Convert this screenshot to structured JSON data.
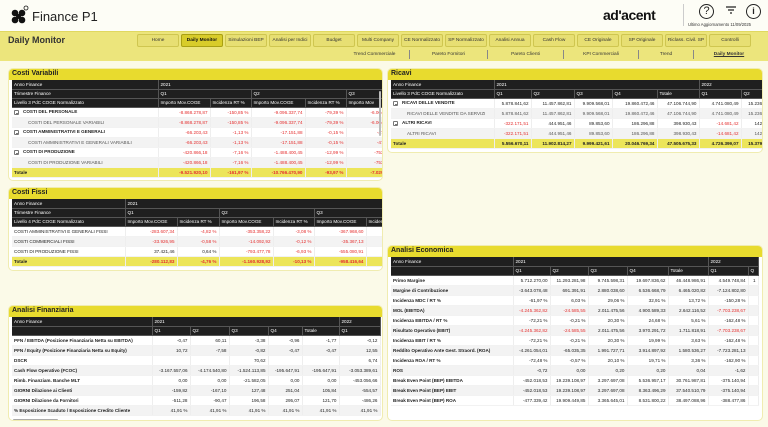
{
  "header": {
    "app_title": "Finance P1",
    "brand": "ad'acent",
    "last_update": "Ultimo Aggiornamento  11/09/2025",
    "icons": [
      "help-icon",
      "filter-icon",
      "info-icon"
    ]
  },
  "toolbar": {
    "page_title": "Daily Monitor",
    "nav": [
      "Home",
      "Daily Monitor",
      "Simulazioni BEP",
      "Analisi per Indici",
      "Budget",
      "Multi Company",
      "CE Normalizzato",
      "SP Normalizzato",
      "Analisi Annua",
      "Cash Flow",
      "CE Originale",
      "SP Originale",
      "Riclass. Civil. SP",
      "Controlli"
    ],
    "nav_active": 1,
    "subnav": [
      "Trend Commerciale",
      "Pareto Fornitori",
      "Pareto Clienti",
      "KPI Commerciali",
      "Trend",
      "Daily Monitor"
    ],
    "subnav_active": 5
  },
  "panels": {
    "costi_variabili": {
      "title": "Costi Variabili",
      "red_negatives": true,
      "head": [
        [
          [
            "Anno Finance",
            1
          ],
          [
            "2021",
            5
          ]
        ],
        [
          [
            "Trimestre Finance",
            1
          ],
          [
            "Q1",
            2
          ],
          [
            "Q2",
            2
          ],
          [
            "Q3",
            1
          ]
        ],
        [
          [
            "Livello 3 PdC COGE Normalizzato",
            1
          ],
          [
            "Importo Mov.COGE",
            1
          ],
          [
            "Incidenza RT %",
            1
          ],
          [
            "Importo Mov.COGE",
            1
          ],
          [
            "Incidenza RT %",
            1
          ],
          [
            "Importo Mov",
            1
          ]
        ]
      ],
      "rows": [
        {
          "type": "bold",
          "exp": true,
          "cells": [
            "COSTI DEL PERSONALE",
            "-8.868.278,87",
            "-150,85 %",
            "-9.096.337,74",
            "-79,39 %",
            "-6.064"
          ]
        },
        {
          "type": "sub",
          "cells": [
            "COSTI DEL PERSONALE VARIABILI",
            "-8.868.278,87",
            "-150,85 %",
            "-9.096.337,74",
            "-79,39 %",
            "-6.064"
          ]
        },
        {
          "type": "bold",
          "exp": true,
          "cells": [
            "COSTI AMMINISTRATIVI E GENERALI",
            "-66.203,43",
            "-1,13 %",
            "-17.151,88",
            "-0,15 %",
            "-47"
          ]
        },
        {
          "type": "sub",
          "cells": [
            "COSTI AMMINISTRATIVI E GENERALI VARIABILI",
            "-66.203,43",
            "-1,13 %",
            "-17.151,88",
            "-0,15 %",
            "-47"
          ]
        },
        {
          "type": "bold",
          "exp": true,
          "cells": [
            "COSTI DI PRODUZIONE",
            "-420.866,18",
            "-7,16 %",
            "-1.488.400,45",
            "-12,99 %",
            "-753"
          ]
        },
        {
          "type": "sub",
          "cells": [
            "COSTI DI PRODUZIONE VARIABILI",
            "-420.866,18",
            "-7,16 %",
            "-1.488.400,45",
            "-12,99 %",
            "-753"
          ]
        },
        {
          "type": "tot",
          "cells": [
            "Totale",
            "-9.521.920,10",
            "-161,97 %",
            "-10.766.470,90",
            "-93,97 %",
            "-7.029"
          ]
        }
      ]
    },
    "ricavi": {
      "title": "Ricavi",
      "red_negatives": true,
      "head": [
        [
          [
            "Anno Finance",
            1
          ],
          [
            "2021",
            5
          ],
          [
            "2022",
            2
          ]
        ],
        [
          [
            "Livello 3 PdC COGE Normalizzato",
            1
          ],
          [
            "Q1",
            1
          ],
          [
            "Q2",
            1
          ],
          [
            "Q3",
            1
          ],
          [
            "Q4",
            1
          ],
          [
            "Totale",
            1
          ],
          [
            "Q1",
            1
          ],
          [
            "Q2",
            1
          ]
        ]
      ],
      "rows": [
        {
          "type": "bold",
          "exp": true,
          "cells": [
            "RICAVI DELLE VENDITE",
            "5.878.841,62",
            "11.457.862,81",
            "9.909.568,01",
            "19.860.472,46",
            "47.106.744,90",
            "4.741.080,49",
            "15.236.44"
          ]
        },
        {
          "type": "sub",
          "cells": [
            "RICAVI DELLE VENDITE DA SERVIZI",
            "5.878.841,62",
            "11.457.862,81",
            "9.909.568,01",
            "19.860.472,46",
            "47.106.744,90",
            "4.741.080,49",
            "15.236.44"
          ]
        },
        {
          "type": "bold",
          "exp": true,
          "cells": [
            "ALTRI RICAVI",
            "-322.171,51",
            "444.951,46",
            "89.853,60",
            "186.296,88",
            "398.930,43",
            "-14.681,42",
            "142.78"
          ]
        },
        {
          "type": "sub",
          "cells": [
            "ALTRI RICAVI",
            "-322.171,51",
            "444.951,46",
            "89.853,60",
            "186.296,88",
            "398.930,43",
            "-14.681,42",
            "142.78"
          ]
        },
        {
          "type": "tot",
          "cells": [
            "Totale",
            "5.556.670,11",
            "11.902.814,27",
            "9.999.421,61",
            "20.046.769,34",
            "47.505.675,33",
            "4.726.399,07",
            "15.379.22"
          ]
        }
      ]
    },
    "costi_fissi": {
      "title": "Costi Fissi",
      "red_negatives": true,
      "head": [
        [
          [
            "Anno Finance",
            1
          ],
          [
            "2021",
            6
          ]
        ],
        [
          [
            "Trimestre Finance",
            1
          ],
          [
            "Q1",
            2
          ],
          [
            "Q2",
            2
          ],
          [
            "Q3",
            2
          ]
        ],
        [
          [
            "Livello 4 PdC COGE Normalizzato",
            1
          ],
          [
            "Importo Mov.COGE",
            1
          ],
          [
            "Incidenza RT %",
            1
          ],
          [
            "Importo Mov.COGE",
            1
          ],
          [
            "Incidenza RT %",
            1
          ],
          [
            "Importo Mov.COGE",
            1
          ],
          [
            "Inciden",
            1
          ]
        ]
      ],
      "rows": [
        {
          "type": "plain",
          "cells": [
            "COSTI AMMINISTRATIVI E GENERALI FISSI",
            "-283.607,34",
            "-4,82 %",
            "-353.358,22",
            "-3,08 %",
            "-367.968,60",
            ""
          ]
        },
        {
          "type": "plain",
          "cells": [
            "COSTI COMMERCIALI FISSI",
            "-33.926,95",
            "-0,58 %",
            "-14.092,92",
            "-0,12 %",
            "-35.367,13",
            ""
          ]
        },
        {
          "type": "plain",
          "cells": [
            "COSTI DI PRODUZIONE FISSI",
            "37.421,46",
            "0,64 %",
            "-793.477,78",
            "-6,93 %",
            "-555.080,91",
            ""
          ]
        },
        {
          "type": "tot",
          "cells": [
            "Totale",
            "-280.112,83",
            "-4,76 %",
            "-1.160.928,92",
            "-10,13 %",
            "-958.416,64",
            ""
          ]
        }
      ]
    },
    "analisi_finanziaria": {
      "title": "Analisi Finanziaria",
      "red_negatives": false,
      "head": [
        [
          [
            "Anno Finance",
            1
          ],
          [
            "2021",
            5
          ],
          [
            "2022",
            1
          ]
        ],
        [
          [
            "",
            1
          ],
          [
            "Q1",
            1
          ],
          [
            "Q2",
            1
          ],
          [
            "Q3",
            1
          ],
          [
            "Q4",
            1
          ],
          [
            "Totale",
            1
          ],
          [
            "Q1",
            1
          ]
        ]
      ],
      "rows": [
        {
          "type": "bold",
          "cells": [
            "PFN / EBITDA (Posizione Finanziaria Netta su EBITDA)",
            "-0,47",
            "60,11",
            "-3,38",
            "-0,96",
            "-1,77",
            "-0,12"
          ]
        },
        {
          "type": "bold",
          "cells": [
            "PFN / Equity (Posizione Finanziaria Netta su Equity)",
            "10,72",
            "-7,58",
            "-0,82",
            "-0,47",
            "-0,47",
            "12,55"
          ]
        },
        {
          "type": "bold",
          "cells": [
            "DSCR",
            "",
            "",
            "70,62",
            "",
            "",
            "6,74"
          ]
        },
        {
          "type": "bold",
          "cells": [
            "Cash Flow Operativo (FCOC)",
            "-3.167.557,06",
            "-4.174.540,80",
            "-1.524.113,85",
            "-195.647,91",
            "-195.647,91",
            "-3.053.389,61"
          ]
        },
        {
          "type": "bold",
          "cells": [
            "Rimb. Finanziam. Banche MLT",
            "0,00",
            "0,00",
            "-21.582,05",
            "0,00",
            "0,00",
            "-453.056,66"
          ]
        },
        {
          "type": "bold",
          "cells": [
            "GIORNI Dilazione ai Clienti",
            "-159,82",
            "-167,10",
            "127,48",
            "251,04",
            "105,84",
            "-554,57"
          ]
        },
        {
          "type": "bold",
          "cells": [
            "GIORNI Dilazione da Fornitori",
            "-511,28",
            "-90,47",
            "196,58",
            "295,07",
            "121,70",
            "-486,26"
          ]
        },
        {
          "type": "bold",
          "cells": [
            "% Esposizione Scaduto / Esposizione Credito Cliente",
            "41,91 %",
            "41,91 %",
            "41,91 %",
            "41,91 %",
            "41,91 %",
            "41,91 %"
          ]
        }
      ]
    },
    "analisi_economica": {
      "title": "Analisi Economica",
      "red_negatives": false,
      "head": [
        [
          [
            "Anno Finance",
            1
          ],
          [
            "2021",
            5
          ],
          [
            "2022",
            2
          ]
        ],
        [
          [
            "",
            1
          ],
          [
            "Q1",
            1
          ],
          [
            "Q2",
            1
          ],
          [
            "Q3",
            1
          ],
          [
            "Q4",
            1
          ],
          [
            "Totale",
            1
          ],
          [
            "Q1",
            1
          ],
          [
            "Q",
            1
          ]
        ]
      ],
      "rows": [
        {
          "type": "bold",
          "cells": [
            "Primo Margine",
            "5.712.270,00",
            "11.293.281,98",
            "9.745.598,31",
            "19.697.836,62",
            "46.448.986,91",
            "4.549.748,84",
            "1"
          ]
        },
        {
          "type": "bold",
          "cells": [
            "Margine di Contribuzione",
            "-3.643.078,48",
            "691.391,91",
            "2.880.038,60",
            "6.536.668,79",
            "6.465.020,82",
            "-7.124.802,80",
            ""
          ]
        },
        {
          "type": "bold",
          "cells": [
            "Incidenza MDC / RT %",
            "-61,97 %",
            "6,03 %",
            "29,06 %",
            "32,91 %",
            "13,72 %",
            "-150,28 %",
            ""
          ]
        },
        {
          "type": "bold",
          "red": true,
          "cells": [
            "MOL (EBITDA)",
            "-4.245.362,82",
            "-24.585,55",
            "2.011.475,56",
            "4.900.589,33",
            "2.642.116,52",
            "-7.703.238,67",
            ""
          ]
        },
        {
          "type": "bold",
          "cells": [
            "Incidenza EBITDA / RT %",
            "-72,21 %",
            "-0,21 %",
            "20,30 %",
            "24,68 %",
            "5,61 %",
            "-162,48 %",
            ""
          ]
        },
        {
          "type": "bold",
          "red": true,
          "cells": [
            "Risultato Operativo (EBIT)",
            "-4.245.362,82",
            "-24.585,55",
            "2.011.475,56",
            "3.970.291,72",
            "1.711.818,91",
            "-7.703.238,67",
            ""
          ]
        },
        {
          "type": "bold",
          "cells": [
            "Incidenza EBIT / RT %",
            "-72,21 %",
            "-0,21 %",
            "20,30 %",
            "19,99 %",
            "3,63 %",
            "-162,48 %",
            ""
          ]
        },
        {
          "type": "bold",
          "cells": [
            "Reddito Operativo Ante Gest. Straord. (ROA)",
            "-4.261.054,01",
            "-65.035,35",
            "1.991.727,71",
            "3.914.897,92",
            "1.580.536,27",
            "-7.723.281,13",
            ""
          ]
        },
        {
          "type": "bold",
          "cells": [
            "Incidenza ROA / RT %",
            "-72,48 %",
            "-0,57 %",
            "20,10 %",
            "19,71 %",
            "3,36 %",
            "-162,90 %",
            ""
          ]
        },
        {
          "type": "bold",
          "cells": [
            "ROS",
            "-0,72",
            "0,00",
            "0,20",
            "0,20",
            "0,04",
            "-1,62",
            ""
          ]
        },
        {
          "type": "bold",
          "cells": [
            "Break Even Point (BEP) EBITDA",
            "-452.018,53",
            "19.239.108,97",
            "3.297.697,08",
            "5.536.957,17",
            "30.761.987,81",
            "-375.140,94",
            ""
          ]
        },
        {
          "type": "bold",
          "cells": [
            "Break Even Point (BEP) EBIT",
            "-452.018,53",
            "19.239.108,97",
            "3.297.697,08",
            "8.363.496,29",
            "37.540.510,79",
            "-375.140,94",
            ""
          ]
        },
        {
          "type": "bold",
          "cells": [
            "Break Even Point (BEP) ROA",
            "-477.339,42",
            "19.909.449,85",
            "3.365.645,01",
            "8.531.800,22",
            "38.497.088,96",
            "-388.477,86",
            ""
          ]
        }
      ]
    }
  }
}
